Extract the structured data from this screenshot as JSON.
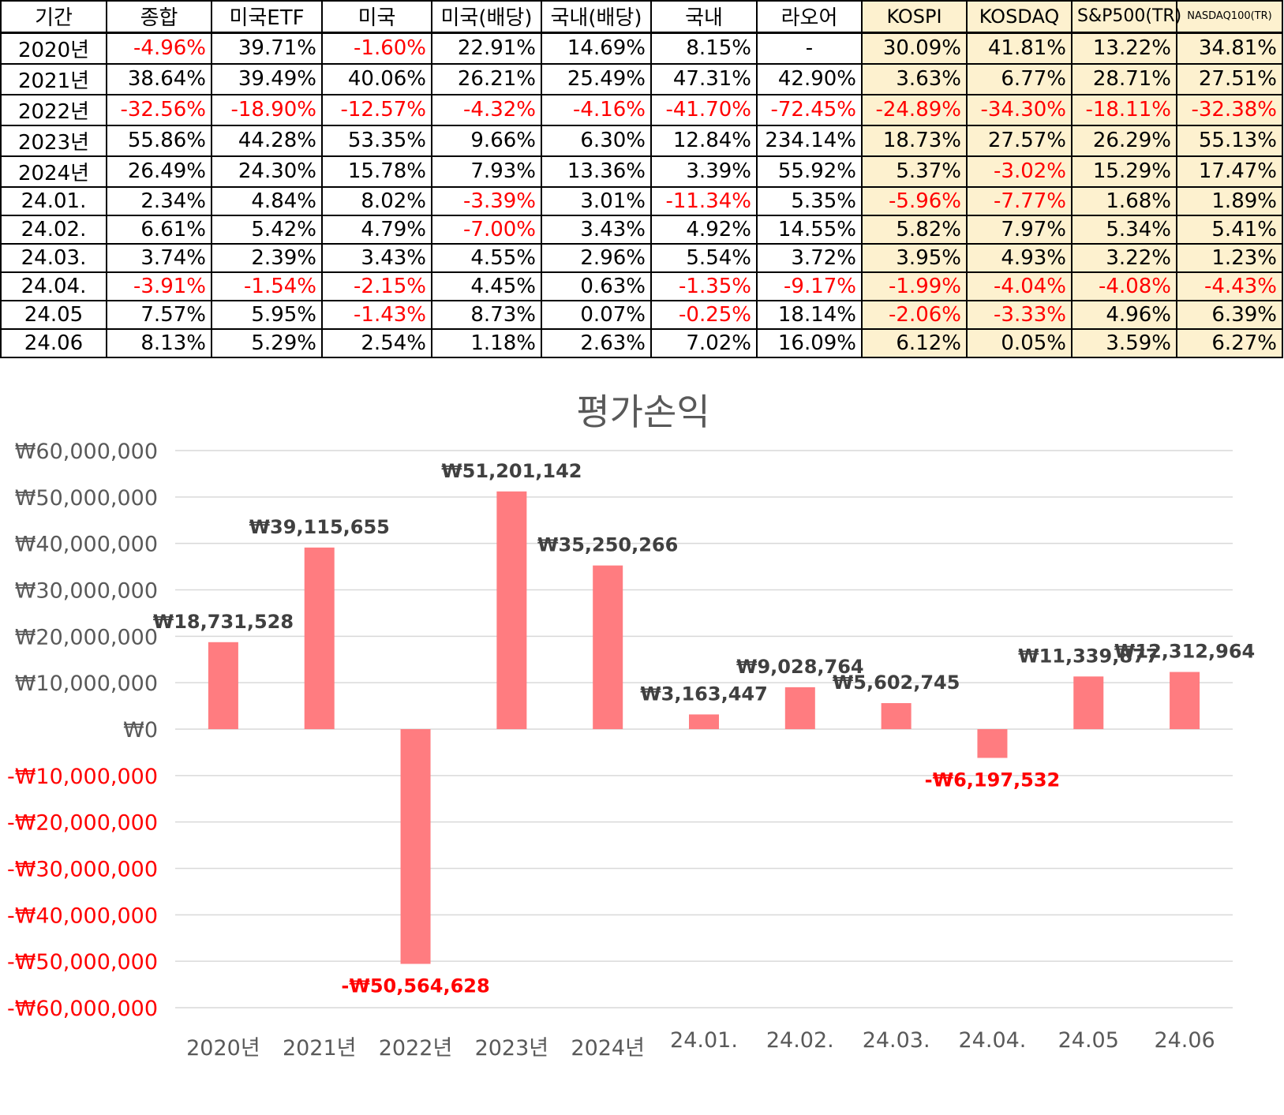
{
  "table": {
    "headers": [
      "기간",
      "종합",
      "미국ETF",
      "미국",
      "미국(배당)",
      "국내(배당)",
      "국내",
      "라오어",
      "KOSPI",
      "KOSDAQ",
      "S&P500(TR)",
      "NASDAQ100(TR)"
    ],
    "rows": [
      [
        "2020년",
        "-4.96%",
        "39.71%",
        "-1.60%",
        "22.91%",
        "14.69%",
        "8.15%",
        "-",
        "30.09%",
        "41.81%",
        "13.22%",
        "34.81%"
      ],
      [
        "2021년",
        "38.64%",
        "39.49%",
        "40.06%",
        "26.21%",
        "25.49%",
        "47.31%",
        "42.90%",
        "3.63%",
        "6.77%",
        "28.71%",
        "27.51%"
      ],
      [
        "2022년",
        "-32.56%",
        "-18.90%",
        "-12.57%",
        "-4.32%",
        "-4.16%",
        "-41.70%",
        "-72.45%",
        "-24.89%",
        "-34.30%",
        "-18.11%",
        "-32.38%"
      ],
      [
        "2023년",
        "55.86%",
        "44.28%",
        "53.35%",
        "9.66%",
        "6.30%",
        "12.84%",
        "234.14%",
        "18.73%",
        "27.57%",
        "26.29%",
        "55.13%"
      ],
      [
        "2024년",
        "26.49%",
        "24.30%",
        "15.78%",
        "7.93%",
        "13.36%",
        "3.39%",
        "55.92%",
        "5.37%",
        "-3.02%",
        "15.29%",
        "17.47%"
      ],
      [
        "24.01.",
        "2.34%",
        "4.84%",
        "8.02%",
        "-3.39%",
        "3.01%",
        "-11.34%",
        "5.35%",
        "-5.96%",
        "-7.77%",
        "1.68%",
        "1.89%"
      ],
      [
        "24.02.",
        "6.61%",
        "5.42%",
        "4.79%",
        "-7.00%",
        "3.43%",
        "4.92%",
        "14.55%",
        "5.82%",
        "7.97%",
        "5.34%",
        "5.41%"
      ],
      [
        "24.03.",
        "3.74%",
        "2.39%",
        "3.43%",
        "4.55%",
        "2.96%",
        "5.54%",
        "3.72%",
        "3.95%",
        "4.93%",
        "3.22%",
        "1.23%"
      ],
      [
        "24.04.",
        "-3.91%",
        "-1.54%",
        "-2.15%",
        "4.45%",
        "0.63%",
        "-1.35%",
        "-9.17%",
        "-1.99%",
        "-4.04%",
        "-4.08%",
        "-4.43%"
      ],
      [
        "24.05",
        "7.57%",
        "5.95%",
        "-1.43%",
        "8.73%",
        "0.07%",
        "-0.25%",
        "18.14%",
        "-2.06%",
        "-3.33%",
        "4.96%",
        "6.39%"
      ],
      [
        "24.06",
        "8.13%",
        "5.29%",
        "2.54%",
        "1.18%",
        "2.63%",
        "7.02%",
        "16.09%",
        "6.12%",
        "0.05%",
        "3.59%",
        "6.27%"
      ]
    ],
    "benchmark_bg": "#fdf1cf",
    "negative_color": "#ff0000"
  },
  "chart_data": {
    "type": "bar",
    "title": "평가손익",
    "categories": [
      "2020년",
      "2021년",
      "2022년",
      "2023년",
      "2024년",
      "24.01.",
      "24.02.",
      "24.03.",
      "24.04.",
      "24.05",
      "24.06"
    ],
    "values": [
      18731528,
      39115655,
      -50564628,
      51201142,
      35250266,
      3163447,
      9028764,
      5602745,
      -6197532,
      11339877,
      12312964
    ],
    "data_labels": [
      "₩18,731,528",
      "₩39,115,655",
      "-₩50,564,628",
      "₩51,201,142",
      "₩35,250,266",
      "₩3,163,447",
      "₩9,028,764",
      "₩5,602,745",
      "-₩6,197,532",
      "₩11,339,877",
      "₩12,312,964"
    ],
    "ylim": [
      -60000000,
      60000000
    ],
    "yticks": [
      60000000,
      50000000,
      40000000,
      30000000,
      20000000,
      10000000,
      0,
      -10000000,
      -20000000,
      -30000000,
      -40000000,
      -50000000,
      -60000000
    ],
    "ytick_labels": [
      "₩60,000,000",
      "₩50,000,000",
      "₩40,000,000",
      "₩30,000,000",
      "₩20,000,000",
      "₩10,000,000",
      "₩0",
      "-₩10,000,000",
      "-₩20,000,000",
      "-₩30,000,000",
      "-₩40,000,000",
      "-₩50,000,000",
      "-₩60,000,000"
    ],
    "grid": true,
    "bar_color": "#ff7c80",
    "negative_label_color": "#ff0000"
  }
}
